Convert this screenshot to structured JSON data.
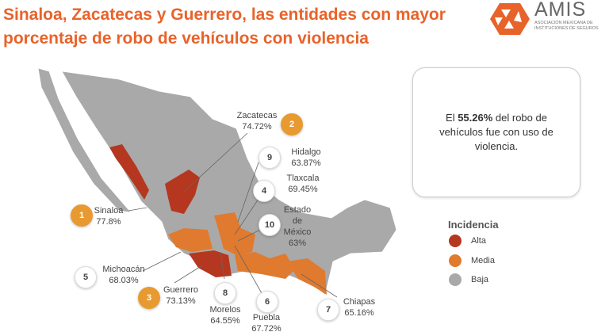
{
  "title": "Sinaloa, Zacatecas y Guerrero, las entidades con mayor porcentaje de robo de vehículos con violencia",
  "logo": {
    "name": "AMIS",
    "subtitle": "ASOCIACIÓN MEXICANA DE INSTITUCIONES DE SEGUROS"
  },
  "callout": {
    "prefix": "El ",
    "highlight": "55.26%",
    "suffix": " del robo de vehículos fue con uso de violencia."
  },
  "legend": {
    "title": "Incidencia",
    "items": [
      {
        "label": "Alta",
        "color": "#b5371f"
      },
      {
        "label": "Media",
        "color": "#e07a2e"
      },
      {
        "label": "Baja",
        "color": "#a9a9a9"
      }
    ]
  },
  "states": [
    {
      "rank": "1",
      "name": "Sinaloa",
      "value": "77.8%",
      "level": "Alta"
    },
    {
      "rank": "2",
      "name": "Zacatecas",
      "value": "74.72%",
      "level": "Alta"
    },
    {
      "rank": "3",
      "name": "Guerrero",
      "value": "73.13%",
      "level": "Alta"
    },
    {
      "rank": "4",
      "name": "Tlaxcala",
      "value": "69.45%",
      "level": "Media"
    },
    {
      "rank": "5",
      "name": "Michoacán",
      "value": "68.03%",
      "level": "Media"
    },
    {
      "rank": "6",
      "name": "Puebla",
      "value": "67.72%",
      "level": "Media"
    },
    {
      "rank": "7",
      "name": "Chiapas",
      "value": "65.16%",
      "level": "Media"
    },
    {
      "rank": "8",
      "name": "Morelos",
      "value": "64.55%",
      "level": "Media"
    },
    {
      "rank": "9",
      "name": "Hidalgo",
      "value": "63.87%",
      "level": "Media"
    },
    {
      "rank": "10",
      "name": "Estado de México",
      "value": "63%",
      "level": "Media"
    }
  ],
  "colors": {
    "title": "#e8632a",
    "badge_top3": "#e89a30"
  }
}
